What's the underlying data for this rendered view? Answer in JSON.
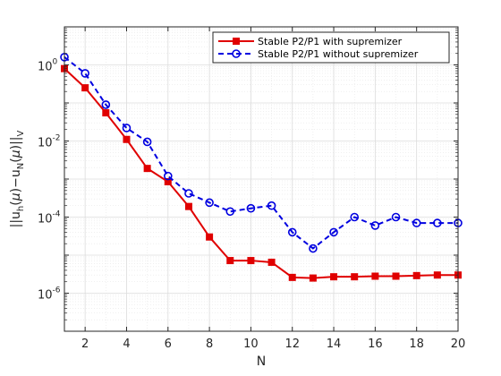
{
  "chart_data": {
    "type": "line",
    "title": "",
    "xlabel": "N",
    "ylabel": "||u_h(μ)−u_N(μ)||_V",
    "ylabel_parts": {
      "a": "||u",
      "b": "h",
      "c": "(",
      "d": "μ",
      "e": ")−u",
      "f": "N",
      "g": "(",
      "h": "μ",
      "i": ")||",
      "j": "V"
    },
    "xlim": [
      1,
      20
    ],
    "ylim_log10": [
      -7,
      1
    ],
    "yscale": "log",
    "grid": true,
    "minor_grid": true,
    "legend_position": "top-right",
    "x_ticks": [
      2,
      4,
      6,
      8,
      10,
      12,
      14,
      16,
      18,
      20
    ],
    "x_tick_labels": [
      "2",
      "4",
      "6",
      "8",
      "10",
      "12",
      "14",
      "16",
      "18",
      "20"
    ],
    "y_ticks": [
      {
        "exp": 0,
        "base": "10",
        "sup": "0"
      },
      {
        "exp": -2,
        "base": "10",
        "sup": "-2"
      },
      {
        "exp": -4,
        "base": "10",
        "sup": "-4"
      },
      {
        "exp": -6,
        "base": "10",
        "sup": "-6"
      }
    ],
    "x": [
      1,
      2,
      3,
      4,
      5,
      6,
      7,
      8,
      9,
      10,
      11,
      12,
      13,
      14,
      15,
      16,
      17,
      18,
      19,
      20
    ],
    "series": [
      {
        "name": "Stable P2/P1 with supremizer",
        "color": "#e00000",
        "style": "solid",
        "marker": "square",
        "values": [
          0.8,
          0.25,
          0.055,
          0.011,
          0.0019,
          0.00085,
          0.00019,
          3e-05,
          7.2e-06,
          7.2e-06,
          6.5e-06,
          2.6e-06,
          2.5e-06,
          2.7e-06,
          2.7e-06,
          2.8e-06,
          2.8e-06,
          2.9e-06,
          3e-06,
          3e-06
        ]
      },
      {
        "name": "Stable P2/P1 without supremizer",
        "color": "#0000e0",
        "style": "dashed",
        "marker": "circle",
        "values": [
          1.6,
          0.6,
          0.09,
          0.022,
          0.0095,
          0.0012,
          0.00042,
          0.00024,
          0.00014,
          0.00017,
          0.0002,
          4e-05,
          1.5e-05,
          4e-05,
          0.0001,
          6e-05,
          0.0001,
          7e-05,
          7e-05,
          7e-05
        ]
      }
    ]
  }
}
